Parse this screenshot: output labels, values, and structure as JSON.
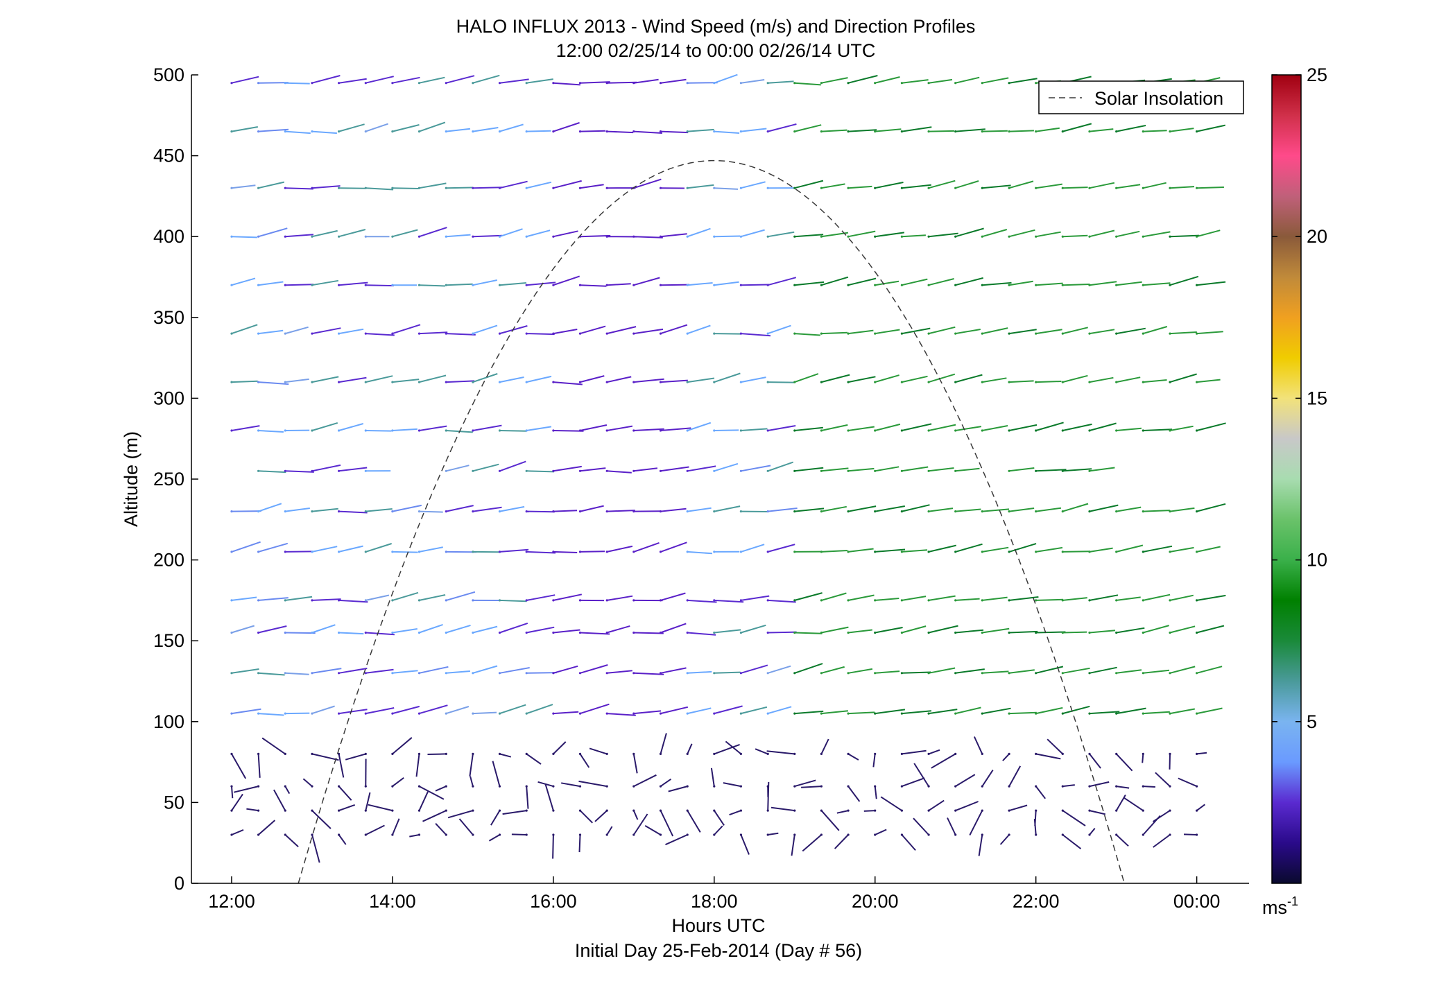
{
  "chart_data": {
    "type": "quiver",
    "title": "HALO INFLUX 2013 - Wind Speed (m/s) and Direction Profiles",
    "subtitle": "12:00 02/25/14 to 00:00 02/26/14  UTC",
    "xlabel": "Hours UTC",
    "xlabel2": "Initial Day 25-Feb-2014 (Day # 56)",
    "ylabel": "Altitude (m)",
    "xlim": [
      11.5,
      24.65
    ],
    "ylim": [
      0,
      500
    ],
    "x_ticks": [
      12,
      14,
      16,
      18,
      20,
      22,
      24
    ],
    "x_tick_labels": [
      "12:00",
      "14:00",
      "16:00",
      "18:00",
      "20:00",
      "22:00",
      "00:00"
    ],
    "y_ticks": [
      0,
      50,
      100,
      150,
      200,
      250,
      300,
      350,
      400,
      450,
      500
    ],
    "y_tick_labels": [
      "0",
      "50",
      "100",
      "150",
      "200",
      "250",
      "300",
      "350",
      "400",
      "450",
      "500"
    ],
    "times": [
      12,
      12.333,
      12.667,
      13,
      13.333,
      13.667,
      14,
      14.333,
      14.667,
      15,
      15.333,
      15.667,
      16,
      16.333,
      16.667,
      17,
      17.333,
      17.667,
      18,
      18.333,
      18.667,
      19,
      19.333,
      19.667,
      20,
      20.333,
      20.667,
      21,
      21.333,
      21.667,
      22,
      22.333,
      22.667,
      23,
      23.333,
      23.667,
      24
    ],
    "altitudes": [
      30,
      45,
      60,
      80,
      105,
      130,
      155,
      175,
      205,
      230,
      255,
      280,
      310,
      340,
      370,
      400,
      430,
      465,
      495
    ],
    "colorbar": {
      "min": 0,
      "max": 25,
      "ticks": [
        5,
        10,
        15,
        20,
        25
      ],
      "tick_labels": [
        "5",
        "10",
        "15",
        "20",
        "25"
      ],
      "unit": "ms",
      "unit_exp": "-1",
      "stops": [
        "#0a0a2e",
        "#2a0a8a",
        "#5a2ad0",
        "#6a9aff",
        "#7ab4f0",
        "#4a9a9a",
        "#1a8a3a",
        "#008000",
        "#3ab04a",
        "#6ac26a",
        "#a8dcb0",
        "#c8c8c8",
        "#f2e27a",
        "#f0cc00",
        "#f0a020",
        "#c08a3a",
        "#8a5a3a",
        "#c0607a",
        "#ff4a8a",
        "#d0304a",
        "#a00010"
      ]
    },
    "legend": {
      "label": "Solar Insolation",
      "position": "top-right"
    },
    "solar_curve": {
      "start": 12.83,
      "peak_time": 18,
      "peak_altitude": 447,
      "end": 23.1
    },
    "wind_profile_notes": "Upper levels (100-500 m): westerly flow, purple-blue before 19:00, green after 19:00; lower levels (30-85 m): weak variable winds (~1-2 m/s, dark navy)."
  }
}
